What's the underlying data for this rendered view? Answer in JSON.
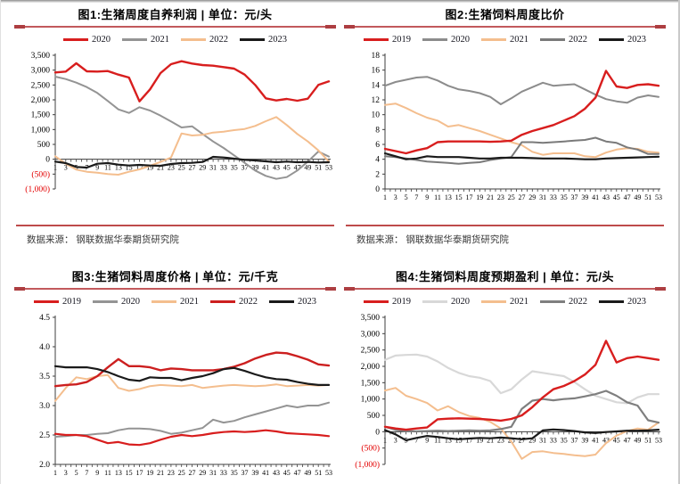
{
  "page": {
    "source_note": "数据来源： 钢联数据华泰期货研究院"
  },
  "chart_data": [
    {
      "type": "line",
      "title": "图1:生猪周度自养利润 | 单位：元/头",
      "ylabel_unit": "元/头",
      "ylim": [
        -1000,
        3500
      ],
      "x_axis_at": 0,
      "xticks": [
        1,
        3,
        5,
        7,
        9,
        11,
        13,
        15,
        17,
        19,
        21,
        23,
        25,
        27,
        29,
        31,
        33,
        35,
        37,
        39,
        41,
        43,
        45,
        47,
        49,
        51,
        53
      ],
      "yticks": [
        {
          "v": 3500,
          "label": "3,500"
        },
        {
          "v": 3000,
          "label": "3,000"
        },
        {
          "v": 2500,
          "label": "2,500"
        },
        {
          "v": 2000,
          "label": "2,000"
        },
        {
          "v": 1500,
          "label": "1,500"
        },
        {
          "v": 1000,
          "label": "1,000"
        },
        {
          "v": 500,
          "label": "500"
        },
        {
          "v": 0,
          "label": "0"
        },
        {
          "v": -500,
          "label": "(500)",
          "neg": true
        },
        {
          "v": -1000,
          "label": "(1,000)",
          "neg": true
        }
      ],
      "legend": [
        {
          "label": "2020",
          "color": "#d81e1e"
        },
        {
          "label": "2021",
          "color": "#949494"
        },
        {
          "label": "2022",
          "color": "#f4be8e"
        },
        {
          "label": "2023",
          "color": "#1a1a1a"
        }
      ],
      "series": [
        {
          "name": "2021",
          "color": "#949494",
          "width": 2,
          "values": [
            2780,
            2700,
            2580,
            2430,
            2230,
            1960,
            1680,
            1560,
            1750,
            1640,
            1470,
            1270,
            1070,
            1110,
            850,
            600,
            380,
            130,
            -120,
            -380,
            -560,
            -660,
            -600,
            -380,
            -80,
            260,
            90
          ]
        },
        {
          "name": "2022",
          "color": "#f4be8e",
          "width": 2,
          "values": [
            100,
            -150,
            -350,
            -420,
            -450,
            -500,
            -520,
            -420,
            -340,
            -220,
            -90,
            60,
            870,
            800,
            820,
            900,
            930,
            980,
            1020,
            1120,
            1280,
            1420,
            1150,
            850,
            600,
            300,
            -80
          ]
        },
        {
          "name": "2020",
          "color": "#d81e1e",
          "width": 2.4,
          "values": [
            2920,
            2950,
            3230,
            2960,
            2950,
            2970,
            2850,
            2750,
            1950,
            2350,
            2900,
            3200,
            3300,
            3220,
            3170,
            3150,
            3100,
            3050,
            2850,
            2500,
            2050,
            1980,
            2030,
            1970,
            2040,
            2500,
            2620
          ]
        },
        {
          "name": "2023",
          "color": "#1a1a1a",
          "width": 2.2,
          "values": [
            -80,
            -130,
            -260,
            -280,
            -150,
            -130,
            -180,
            -210,
            -190,
            -210,
            -220,
            -160,
            -130,
            -120,
            -90,
            80,
            60,
            20,
            -20,
            -40,
            -70,
            -100,
            -80,
            -100,
            -90,
            -110,
            -100
          ]
        }
      ],
      "source": "数据来源： 钢联数据华泰期货研究院"
    },
    {
      "type": "line",
      "title": "图2:生猪饲料周度比价",
      "ylabel_unit": "",
      "ylim": [
        0,
        18
      ],
      "x_axis_at": 0,
      "xticks": [
        1,
        3,
        5,
        7,
        9,
        11,
        13,
        15,
        17,
        19,
        21,
        23,
        25,
        27,
        29,
        31,
        33,
        35,
        37,
        39,
        41,
        43,
        45,
        47,
        49,
        51,
        53
      ],
      "yticks": [
        {
          "v": 18,
          "label": "18"
        },
        {
          "v": 16,
          "label": "16"
        },
        {
          "v": 14,
          "label": "14"
        },
        {
          "v": 12,
          "label": "12"
        },
        {
          "v": 10,
          "label": "10"
        },
        {
          "v": 8,
          "label": "8"
        },
        {
          "v": 6,
          "label": "6"
        },
        {
          "v": 4,
          "label": "4"
        },
        {
          "v": 2,
          "label": "2"
        },
        {
          "v": 0,
          "label": "0"
        }
      ],
      "legend": [
        {
          "label": "2019",
          "color": "#d81e1e"
        },
        {
          "label": "2020",
          "color": "#8c8c8c"
        },
        {
          "label": "2021",
          "color": "#f4be8e"
        },
        {
          "label": "2022",
          "color": "#7a7a7a"
        },
        {
          "label": "2023",
          "color": "#1a1a1a"
        }
      ],
      "series": [
        {
          "name": "2021",
          "color": "#f4be8e",
          "width": 2,
          "values": [
            11.3,
            11.5,
            10.9,
            10.2,
            9.6,
            9.2,
            8.4,
            8.6,
            8.2,
            7.8,
            7.3,
            6.8,
            6.3,
            5.9,
            5.0,
            4.6,
            4.8,
            4.8,
            4.8,
            4.4,
            4.3,
            4.9,
            5.3,
            5.5,
            5.4,
            5.0,
            4.9
          ]
        },
        {
          "name": "2022",
          "color": "#7a7a7a",
          "width": 2,
          "values": [
            4.4,
            4.3,
            4.1,
            3.9,
            3.7,
            3.6,
            3.5,
            3.4,
            3.5,
            3.6,
            3.9,
            4.1,
            4.3,
            6.3,
            6.3,
            6.2,
            6.3,
            6.4,
            6.5,
            6.6,
            6.9,
            6.4,
            6.2,
            5.6,
            5.3,
            4.7,
            4.7
          ]
        },
        {
          "name": "2020",
          "color": "#8c8c8c",
          "width": 2,
          "values": [
            13.9,
            14.4,
            14.7,
            15.0,
            15.1,
            14.6,
            13.9,
            13.4,
            13.2,
            12.9,
            12.4,
            11.4,
            12.2,
            13.1,
            13.7,
            14.3,
            13.9,
            14.0,
            14.1,
            13.4,
            12.7,
            12.1,
            11.8,
            11.6,
            12.3,
            12.6,
            12.4
          ]
        },
        {
          "name": "2019",
          "color": "#d81e1e",
          "width": 2.4,
          "values": [
            5.4,
            5.1,
            4.8,
            5.2,
            5.5,
            6.3,
            6.4,
            6.4,
            6.4,
            6.4,
            6.35,
            6.4,
            6.5,
            7.3,
            7.8,
            8.2,
            8.6,
            9.2,
            9.8,
            10.8,
            12.3,
            15.9,
            13.8,
            13.6,
            14.0,
            14.1,
            13.9
          ]
        },
        {
          "name": "2023",
          "color": "#1a1a1a",
          "width": 2.2,
          "values": [
            4.8,
            4.4,
            4.0,
            4.1,
            4.4,
            4.3,
            4.3,
            4.3,
            4.2,
            4.1,
            4.1,
            4.2,
            4.2,
            4.2,
            4.15,
            4.1,
            4.1,
            4.1,
            4.05,
            4.0,
            4.0,
            4.1,
            4.15,
            4.2,
            4.25,
            4.3,
            4.35
          ]
        }
      ],
      "source": "数据来源： 钢联数据华泰期货研究院"
    },
    {
      "type": "line",
      "title": "图3:生猪饲料周度价格 | 单位：元/千克",
      "ylabel_unit": "元/千克",
      "ylim": [
        2.0,
        4.5
      ],
      "x_axis_at": 2.0,
      "xticks": [
        1,
        3,
        5,
        7,
        9,
        11,
        13,
        15,
        17,
        19,
        21,
        23,
        25,
        27,
        29,
        31,
        33,
        35,
        37,
        39,
        41,
        43,
        45,
        47,
        49,
        51,
        53
      ],
      "yticks": [
        {
          "v": 4.5,
          "label": "4.5"
        },
        {
          "v": 4.0,
          "label": "4.0"
        },
        {
          "v": 3.5,
          "label": "3.5"
        },
        {
          "v": 3.0,
          "label": "3.0"
        },
        {
          "v": 2.5,
          "label": "2.5"
        },
        {
          "v": 2.0,
          "label": "2.0"
        }
      ],
      "legend": [
        {
          "label": "2019",
          "color": "#d81e1e"
        },
        {
          "label": "2020",
          "color": "#949494"
        },
        {
          "label": "2021",
          "color": "#f4be8e"
        },
        {
          "label": "2022",
          "color": "#cc1f1f"
        },
        {
          "label": "2023",
          "color": "#1a1a1a"
        }
      ],
      "series": [
        {
          "name": "2020",
          "color": "#949494",
          "width": 2,
          "values": [
            2.47,
            2.48,
            2.5,
            2.5,
            2.52,
            2.53,
            2.58,
            2.61,
            2.61,
            2.6,
            2.57,
            2.52,
            2.54,
            2.58,
            2.62,
            2.76,
            2.71,
            2.74,
            2.8,
            2.85,
            2.9,
            2.95,
            3.0,
            2.97,
            3.0,
            3.0,
            3.05
          ]
        },
        {
          "name": "2021",
          "color": "#f4be8e",
          "width": 2,
          "values": [
            3.08,
            3.3,
            3.48,
            3.45,
            3.5,
            3.52,
            3.3,
            3.25,
            3.28,
            3.33,
            3.35,
            3.34,
            3.33,
            3.35,
            3.3,
            3.32,
            3.34,
            3.35,
            3.34,
            3.33,
            3.34,
            3.36,
            3.33,
            3.34,
            3.35,
            3.34,
            3.35
          ]
        },
        {
          "name": "2019",
          "color": "#d81e1e",
          "width": 2.2,
          "values": [
            2.52,
            2.5,
            2.5,
            2.48,
            2.42,
            2.36,
            2.38,
            2.34,
            2.33,
            2.36,
            2.42,
            2.47,
            2.5,
            2.48,
            2.5,
            2.53,
            2.55,
            2.56,
            2.55,
            2.56,
            2.58,
            2.56,
            2.53,
            2.52,
            2.51,
            2.5,
            2.48
          ]
        },
        {
          "name": "2022",
          "color": "#cc1f1f",
          "width": 2.4,
          "values": [
            3.33,
            3.35,
            3.36,
            3.4,
            3.5,
            3.65,
            3.79,
            3.67,
            3.67,
            3.65,
            3.6,
            3.63,
            3.62,
            3.6,
            3.6,
            3.6,
            3.62,
            3.66,
            3.72,
            3.8,
            3.86,
            3.9,
            3.89,
            3.84,
            3.78,
            3.7,
            3.68
          ]
        },
        {
          "name": "2023",
          "color": "#1a1a1a",
          "width": 2.2,
          "values": [
            3.67,
            3.65,
            3.65,
            3.65,
            3.62,
            3.57,
            3.5,
            3.44,
            3.42,
            3.48,
            3.47,
            3.47,
            3.43,
            3.47,
            3.5,
            3.55,
            3.62,
            3.64,
            3.59,
            3.53,
            3.48,
            3.45,
            3.44,
            3.4,
            3.37,
            3.35,
            3.35
          ]
        }
      ]
    },
    {
      "type": "line",
      "title": "图4:生猪饲料周度预期盈利 | 单位：元/头",
      "ylabel_unit": "元/头",
      "ylim": [
        -1000,
        3500
      ],
      "x_axis_at": 0,
      "xticks": [
        1,
        3,
        5,
        7,
        9,
        11,
        13,
        15,
        17,
        19,
        21,
        23,
        25,
        27,
        29,
        31,
        33,
        35,
        37,
        39,
        41,
        43,
        45,
        47,
        49,
        51,
        53
      ],
      "yticks": [
        {
          "v": 3500,
          "label": "3,500"
        },
        {
          "v": 3000,
          "label": "3,000"
        },
        {
          "v": 2500,
          "label": "2,500"
        },
        {
          "v": 2000,
          "label": "2,000"
        },
        {
          "v": 1500,
          "label": "1,500"
        },
        {
          "v": 1000,
          "label": "1,000"
        },
        {
          "v": 500,
          "label": "500"
        },
        {
          "v": 0,
          "label": "0"
        },
        {
          "v": -500,
          "label": "(500)",
          "neg": true
        },
        {
          "v": -1000,
          "label": "(1,000)",
          "neg": true
        }
      ],
      "legend": [
        {
          "label": "2019",
          "color": "#d81e1e"
        },
        {
          "label": "2020",
          "color": "#d8d8d8"
        },
        {
          "label": "2021",
          "color": "#f4be8e"
        },
        {
          "label": "2022",
          "color": "#7f7f7f"
        },
        {
          "label": "2023",
          "color": "#1a1a1a"
        }
      ],
      "series": [
        {
          "name": "2020",
          "color": "#d8d8d8",
          "width": 2.2,
          "values": [
            2200,
            2330,
            2350,
            2360,
            2300,
            2150,
            1950,
            1800,
            1700,
            1650,
            1550,
            1180,
            1300,
            1600,
            1850,
            1800,
            1750,
            1700,
            1520,
            1300,
            1100,
            1000,
            900,
            870,
            1050,
            1150,
            1150
          ]
        },
        {
          "name": "2021",
          "color": "#f4be8e",
          "width": 2,
          "values": [
            1260,
            1340,
            1100,
            1000,
            880,
            650,
            780,
            600,
            480,
            420,
            300,
            100,
            -300,
            -830,
            -620,
            -600,
            -650,
            -680,
            -720,
            -750,
            -700,
            -350,
            -120,
            20,
            100,
            60,
            280
          ]
        },
        {
          "name": "2022",
          "color": "#7f7f7f",
          "width": 2.2,
          "values": [
            150,
            60,
            20,
            10,
            20,
            30,
            20,
            30,
            40,
            30,
            40,
            80,
            150,
            700,
            950,
            1000,
            960,
            1000,
            1020,
            1080,
            1150,
            1250,
            1100,
            900,
            800,
            350,
            280
          ]
        },
        {
          "name": "2019",
          "color": "#d81e1e",
          "width": 2.4,
          "values": [
            150,
            100,
            60,
            100,
            130,
            380,
            400,
            410,
            400,
            390,
            370,
            340,
            390,
            500,
            750,
            1050,
            1300,
            1400,
            1550,
            1750,
            2050,
            2780,
            2120,
            2250,
            2300,
            2250,
            2200
          ]
        },
        {
          "name": "2023",
          "color": "#1a1a1a",
          "width": 2.2,
          "values": [
            50,
            -80,
            -260,
            -190,
            -130,
            -160,
            -200,
            -230,
            -210,
            -190,
            -200,
            -180,
            -200,
            -230,
            -200,
            40,
            70,
            50,
            20,
            -20,
            -40,
            -10,
            10,
            30,
            30,
            40,
            60
          ]
        }
      ]
    }
  ]
}
